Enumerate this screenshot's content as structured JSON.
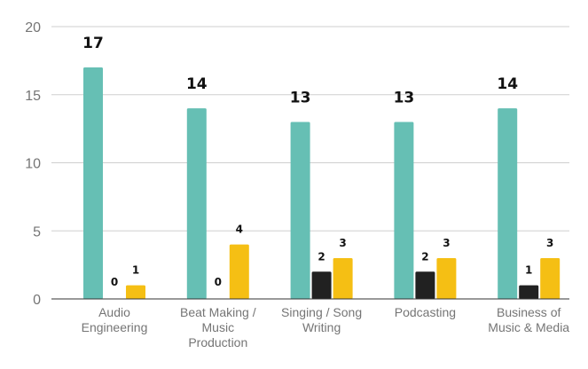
{
  "chart_data": {
    "type": "bar",
    "title": "",
    "xlabel": "",
    "ylabel": "",
    "ylim": [
      0,
      20
    ],
    "yticks": [
      0,
      5,
      10,
      15,
      20
    ],
    "grid": true,
    "legend": "none",
    "categories": [
      [
        "Audio",
        "Engineering"
      ],
      [
        "Beat Making /",
        "Music",
        "Production"
      ],
      [
        "Singing / Song",
        "Writing"
      ],
      [
        "Podcasting"
      ],
      [
        "Business of",
        "Music & Media"
      ]
    ],
    "series": [
      {
        "color": "#66bfb4",
        "label_size": "large",
        "values": [
          17,
          14,
          13,
          13,
          14
        ]
      },
      {
        "color": "#212121",
        "label_size": "small",
        "values": [
          0,
          0,
          2,
          2,
          1
        ]
      },
      {
        "color": "#f5bf14",
        "label_size": "small",
        "values": [
          1,
          4,
          3,
          3,
          3
        ]
      }
    ]
  }
}
